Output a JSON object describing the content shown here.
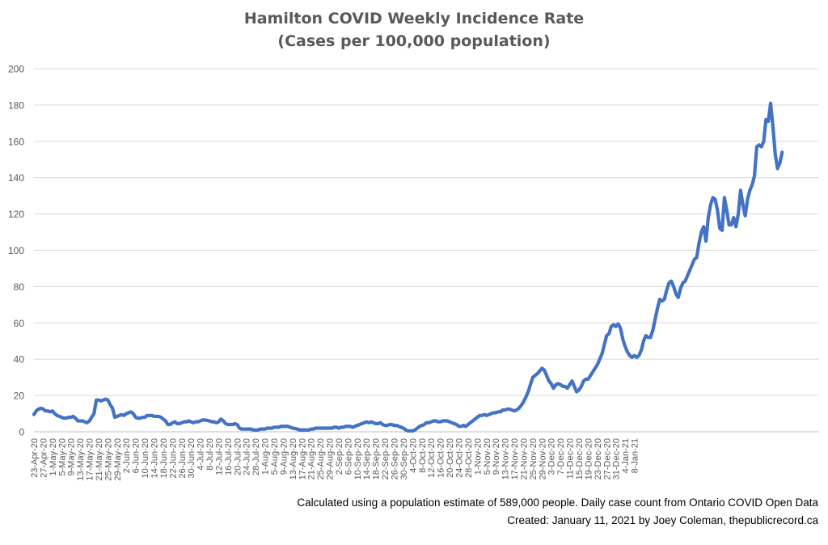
{
  "title_lines": [
    "Hamilton COVID Weekly Incidence Rate",
    "(Cases per 100,000 population)"
  ],
  "footnotes": [
    "Calculated using a population estimate of 589,000 people. Daily case count from Ontario COVID Open Data",
    "Created: January 11, 2021 by Joey Coleman, thepublicrecord.ca"
  ],
  "colors": {
    "line": "#4472C4",
    "grid": "#D9D9D9",
    "axis_text": "#595959"
  },
  "chart_data": {
    "type": "line",
    "title": "Hamilton COVID Weekly Incidence Rate (Cases per 100,000 population)",
    "xlabel": "",
    "ylabel": "",
    "ylim": [
      0,
      200
    ],
    "yticks": [
      0,
      20,
      40,
      60,
      80,
      100,
      120,
      140,
      160,
      180,
      200
    ],
    "grid": true,
    "legend": "none",
    "start_date": "2020-04-23",
    "end_date": "2021-01-10",
    "xtick_labels": [
      "23-Apr-20",
      "27-Apr-20",
      "1-May-20",
      "5-May-20",
      "9-May-20",
      "13-May-20",
      "17-May-20",
      "21-May-20",
      "25-May-20",
      "29-May-20",
      "2-Jun-20",
      "6-Jun-20",
      "10-Jun-20",
      "14-Jun-20",
      "18-Jun-20",
      "22-Jun-20",
      "26-Jun-20",
      "30-Jun-20",
      "4-Jul-20",
      "8-Jul-20",
      "12-Jul-20",
      "16-Jul-20",
      "20-Jul-20",
      "24-Jul-20",
      "28-Jul-20",
      "1-Aug-20",
      "5-Aug-20",
      "9-Aug-20",
      "13-Aug-20",
      "17-Aug-20",
      "21-Aug-20",
      "25-Aug-20",
      "29-Aug-20",
      "2-Sep-20",
      "6-Sep-20",
      "10-Sep-20",
      "14-Sep-20",
      "18-Sep-20",
      "22-Sep-20",
      "26-Sep-20",
      "30-Sep-20",
      "4-Oct-20",
      "8-Oct-20",
      "12-Oct-20",
      "16-Oct-20",
      "20-Oct-20",
      "24-Oct-20",
      "28-Oct-20",
      "1-Nov-20",
      "5-Nov-20",
      "9-Nov-20",
      "13-Nov-20",
      "17-Nov-20",
      "21-Nov-20",
      "25-Nov-20",
      "29-Nov-20",
      "3-Dec-20",
      "7-Dec-20",
      "11-Dec-20",
      "15-Dec-20",
      "19-Dec-20",
      "23-Dec-20",
      "27-Dec-20",
      "31-Dec-20",
      "4-Jan-21",
      "8-Jan-21"
    ],
    "series": [
      {
        "name": "",
        "values": [
          9.5,
          11.5,
          12.5,
          13,
          12.5,
          11.5,
          11.5,
          11,
          11.5,
          10,
          9,
          8.5,
          8,
          7.5,
          7.5,
          8,
          8,
          8.5,
          7.5,
          6,
          6,
          6,
          5.5,
          5,
          6,
          8,
          10,
          17.5,
          17.5,
          17,
          17.5,
          18,
          17.5,
          15,
          13,
          8,
          8.5,
          9,
          9.5,
          9,
          10,
          10.5,
          11,
          10,
          8,
          7.5,
          7.5,
          8,
          8,
          9,
          9,
          9,
          8.5,
          8.5,
          8.5,
          8,
          7,
          6,
          4,
          4,
          5,
          5.5,
          4.5,
          4.5,
          5,
          5.5,
          5.5,
          6,
          5.5,
          5,
          5.5,
          5.5,
          6,
          6.5,
          6.5,
          6.3,
          6,
          5.5,
          5.5,
          5,
          5.5,
          7,
          6,
          4.5,
          4,
          4,
          4,
          4.5,
          4,
          2,
          1.5,
          1.5,
          1.5,
          1.5,
          1.5,
          1,
          1,
          1,
          1.5,
          1.5,
          1.5,
          2,
          2,
          2,
          2.5,
          2.5,
          2.5,
          3,
          3,
          3,
          3,
          2.5,
          2,
          1.8,
          1.5,
          1,
          1,
          1,
          1,
          1,
          1.5,
          1.5,
          2,
          2,
          2,
          2,
          2,
          2,
          2,
          2,
          2.5,
          2.5,
          2,
          2.5,
          2.5,
          3,
          3,
          3,
          2.5,
          3,
          3.5,
          4,
          4.5,
          5,
          5.5,
          5,
          5.5,
          5,
          4.5,
          4.5,
          5,
          4,
          3.5,
          3.5,
          4,
          4,
          3.5,
          3.5,
          3,
          2.5,
          2,
          1,
          0.5,
          0.5,
          0.5,
          1,
          2,
          3,
          3.5,
          4,
          5,
          5,
          5.5,
          6,
          6,
          5.5,
          5.5,
          6,
          6,
          6,
          5.5,
          5,
          4.5,
          4,
          3,
          3,
          3.5,
          3,
          4,
          5,
          6,
          7,
          8,
          9,
          9,
          9.5,
          9,
          9.5,
          10,
          10.5,
          10.5,
          11,
          11,
          12,
          12,
          12.5,
          12.5,
          12,
          11.5,
          12,
          13,
          14.5,
          16.5,
          19,
          22,
          26,
          30,
          31,
          32,
          33.5,
          35,
          34,
          31,
          28,
          26.5,
          24,
          26,
          26.5,
          26,
          25,
          25,
          24,
          26,
          28,
          25,
          22,
          23,
          25,
          28,
          29,
          29,
          31,
          33,
          35,
          37,
          40,
          43,
          48,
          53,
          54,
          58,
          59,
          58,
          59.5,
          57,
          51,
          47,
          44,
          42,
          41,
          42,
          41,
          42,
          45,
          50,
          53,
          52,
          52,
          56,
          62,
          68,
          73,
          72,
          73,
          78,
          82,
          83,
          80,
          76,
          74,
          79,
          82,
          83,
          86,
          89,
          92,
          95,
          96,
          104,
          110,
          113,
          105,
          118,
          125,
          129,
          128,
          122,
          112,
          111,
          129,
          122,
          114,
          114,
          118,
          113,
          120,
          133,
          125,
          119,
          128,
          133,
          136,
          141,
          157,
          158,
          157,
          160,
          172,
          171,
          181,
          168,
          153,
          145,
          148,
          154
        ]
      }
    ]
  }
}
